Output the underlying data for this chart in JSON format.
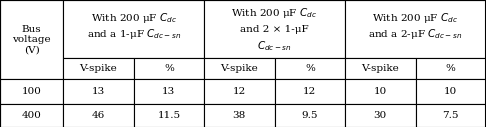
{
  "col_headers_row2": [
    "V-spike",
    "%",
    "V-spike",
    "%",
    "V-spike",
    "%"
  ],
  "data_rows": [
    [
      "100",
      "13",
      "13",
      "12",
      "12",
      "10",
      "10"
    ],
    [
      "400",
      "46",
      "11.5",
      "38",
      "9.5",
      "30",
      "7.5"
    ]
  ],
  "background": "#ffffff",
  "text_color": "#000000",
  "border_color": "#000000",
  "font_size": 7.5,
  "bold_cell": [
    1,
    6
  ]
}
